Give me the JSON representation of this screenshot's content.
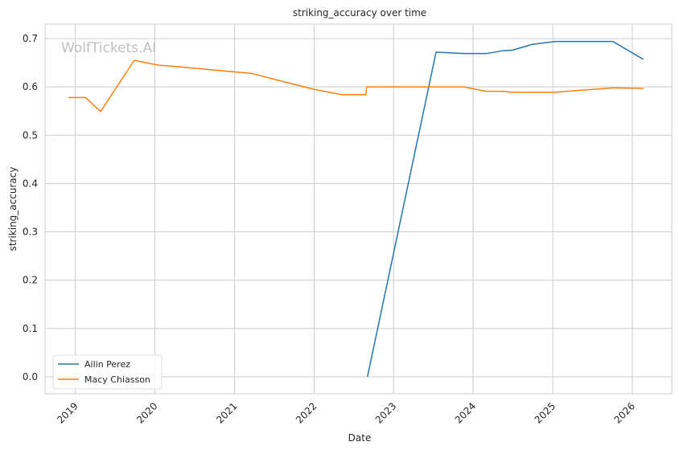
{
  "watermark": "WolfTickets.AI",
  "chart_data": {
    "type": "line",
    "title": "striking_accuracy over time",
    "xlabel": "Date",
    "ylabel": "striking_accuracy",
    "x_is_date": true,
    "xlim": [
      "2018-08-15",
      "2026-07-01"
    ],
    "ylim": [
      -0.035,
      0.73
    ],
    "x_ticks": [
      {
        "label": "2019",
        "value": "2019-01-01"
      },
      {
        "label": "2020",
        "value": "2020-01-01"
      },
      {
        "label": "2021",
        "value": "2021-01-01"
      },
      {
        "label": "2022",
        "value": "2022-01-01"
      },
      {
        "label": "2023",
        "value": "2023-01-01"
      },
      {
        "label": "2024",
        "value": "2024-01-01"
      },
      {
        "label": "2025",
        "value": "2025-01-01"
      },
      {
        "label": "2026",
        "value": "2026-01-01"
      }
    ],
    "y_ticks": [
      {
        "label": "0.0",
        "value": 0.0
      },
      {
        "label": "0.1",
        "value": 0.1
      },
      {
        "label": "0.2",
        "value": 0.2
      },
      {
        "label": "0.3",
        "value": 0.3
      },
      {
        "label": "0.4",
        "value": 0.4
      },
      {
        "label": "0.5",
        "value": 0.5
      },
      {
        "label": "0.6",
        "value": 0.6
      },
      {
        "label": "0.7",
        "value": 0.7
      }
    ],
    "grid": true,
    "legend_position": "lower-left",
    "series": [
      {
        "name": "Ailin Perez",
        "color": "#1f77b4",
        "points": [
          {
            "x": "2022-09-03",
            "y": 0.0
          },
          {
            "x": "2023-07-15",
            "y": 0.672
          },
          {
            "x": "2023-11-18",
            "y": 0.669
          },
          {
            "x": "2024-03-02",
            "y": 0.669
          },
          {
            "x": "2024-05-18",
            "y": 0.675
          },
          {
            "x": "2024-06-29",
            "y": 0.676
          },
          {
            "x": "2024-09-28",
            "y": 0.688
          },
          {
            "x": "2025-01-11",
            "y": 0.694
          },
          {
            "x": "2025-10-04",
            "y": 0.694
          },
          {
            "x": "2026-02-21",
            "y": 0.657
          }
        ]
      },
      {
        "name": "Macy Chiasson",
        "color": "#ff7f0e",
        "points": [
          {
            "x": "2018-11-30",
            "y": 0.578
          },
          {
            "x": "2019-02-17",
            "y": 0.578
          },
          {
            "x": "2019-04-27",
            "y": 0.549
          },
          {
            "x": "2019-09-28",
            "y": 0.655
          },
          {
            "x": "2020-01-18",
            "y": 0.645
          },
          {
            "x": "2020-03-14",
            "y": 0.643
          },
          {
            "x": "2021-03-20",
            "y": 0.628
          },
          {
            "x": "2021-08-21",
            "y": 0.61
          },
          {
            "x": "2022-01-01",
            "y": 0.595
          },
          {
            "x": "2022-05-07",
            "y": 0.584
          },
          {
            "x": "2022-08-27",
            "y": 0.584
          },
          {
            "x": "2022-08-30",
            "y": 0.6
          },
          {
            "x": "2023-11-18",
            "y": 0.6
          },
          {
            "x": "2024-03-02",
            "y": 0.591
          },
          {
            "x": "2024-05-18",
            "y": 0.591
          },
          {
            "x": "2024-06-29",
            "y": 0.589
          },
          {
            "x": "2025-01-11",
            "y": 0.589
          },
          {
            "x": "2025-10-04",
            "y": 0.598
          },
          {
            "x": "2026-02-21",
            "y": 0.597
          }
        ]
      }
    ]
  }
}
